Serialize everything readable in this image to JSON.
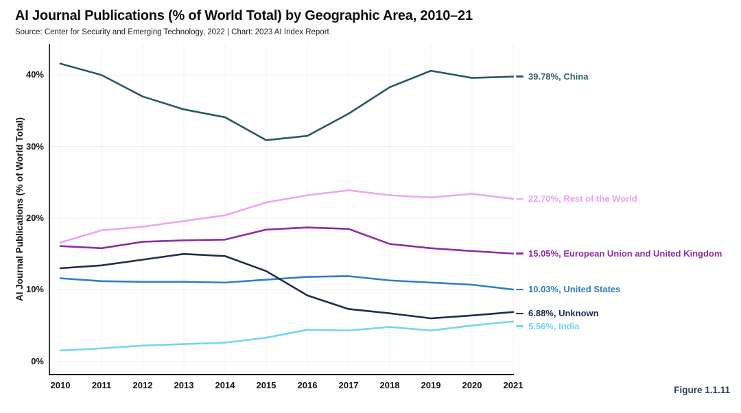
{
  "header": {
    "title": "AI Journal Publications (% of World Total) by Geographic Area, 2010–21",
    "source": "Source: Center for Security and Emerging Technology, 2022 | Chart: 2023 AI Index Report"
  },
  "figure_caption": "Figure 1.1.11",
  "colors": {
    "title_text": "#0e0e0e",
    "axis_text": "#141414",
    "grid_horizontal": "#efedf3",
    "grid_vertical": "#f3f1f6",
    "left_spine": "#3c3c3c",
    "bottom_spine": "#141414",
    "caption_text": "#2c3e5d"
  },
  "chart_data": {
    "type": "line",
    "title": "AI Journal Publications (% of World Total) by Geographic Area, 2010–21",
    "xlabel": "",
    "ylabel": "AI Journal Publications (% of World Total)",
    "x": [
      2010,
      2011,
      2012,
      2013,
      2014,
      2015,
      2016,
      2017,
      2018,
      2019,
      2020,
      2021
    ],
    "yticks": [
      0,
      10,
      20,
      30,
      40
    ],
    "ytick_suffix": "%",
    "ylim": [
      -2,
      44
    ],
    "grid": true,
    "legend_position": "right-end-labels",
    "series": [
      {
        "name": "China",
        "color": "#2a5962",
        "label_color": "#35616c",
        "end_label": "39.78%, China",
        "label_dy": 0,
        "values": [
          41.6,
          40.0,
          37.0,
          35.2,
          34.1,
          30.9,
          31.5,
          34.6,
          38.3,
          40.6,
          39.6,
          39.78
        ]
      },
      {
        "name": "Rest of the World",
        "color": "#eaa6f2",
        "label_color": "#e9a0f0",
        "end_label": "22.70%, Rest of the World",
        "label_dy": 0,
        "values": [
          16.6,
          18.3,
          18.8,
          19.6,
          20.4,
          22.2,
          23.2,
          23.9,
          23.2,
          22.9,
          23.4,
          22.7
        ]
      },
      {
        "name": "European Union and United Kingdom",
        "color": "#8e2ca6",
        "label_color": "#8e2ca6",
        "end_label": "15.05%, European Union and United Kingdom",
        "label_dy": 0,
        "values": [
          16.1,
          15.8,
          16.7,
          16.9,
          17.0,
          18.4,
          18.7,
          18.5,
          16.4,
          15.8,
          15.4,
          15.05
        ]
      },
      {
        "name": "United States",
        "color": "#2f7ec4",
        "label_color": "#2f7ec4",
        "end_label": "10.03%, United States",
        "label_dy": 0,
        "values": [
          11.6,
          11.2,
          11.1,
          11.1,
          11.0,
          11.4,
          11.8,
          11.9,
          11.3,
          11.0,
          10.7,
          10.03
        ]
      },
      {
        "name": "Unknown",
        "color": "#212c50",
        "label_color": "#212c50",
        "end_label": "6.88%, Unknown",
        "label_dy": 2,
        "values": [
          13.0,
          13.4,
          14.2,
          15.0,
          14.7,
          12.6,
          9.2,
          7.3,
          6.7,
          6.0,
          6.4,
          6.88
        ]
      },
      {
        "name": "India",
        "color": "#73d5f5",
        "label_color": "#72d2f4",
        "end_label": "5.56%, India",
        "label_dy": 7,
        "values": [
          1.5,
          1.8,
          2.2,
          2.4,
          2.6,
          3.3,
          4.4,
          4.3,
          4.8,
          4.3,
          5.0,
          5.56
        ]
      }
    ]
  }
}
